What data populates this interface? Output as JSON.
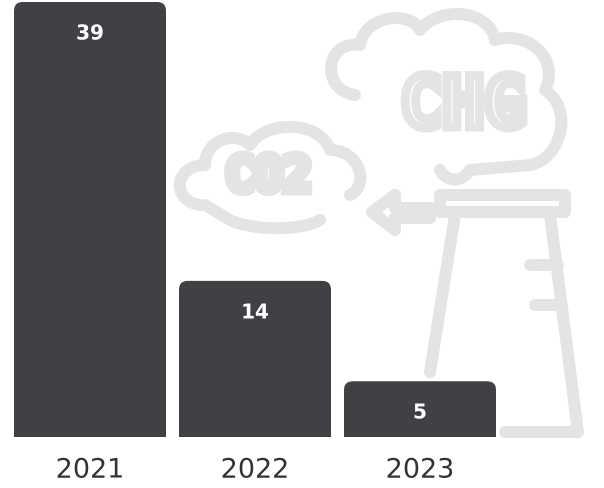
{
  "chart_data": {
    "type": "bar",
    "categories": [
      "2021",
      "2022",
      "2023"
    ],
    "values": [
      39,
      14,
      5
    ],
    "color": "#3f4144",
    "ylim": [
      0,
      39
    ],
    "annotations": [
      "CO2",
      "CHG"
    ]
  }
}
